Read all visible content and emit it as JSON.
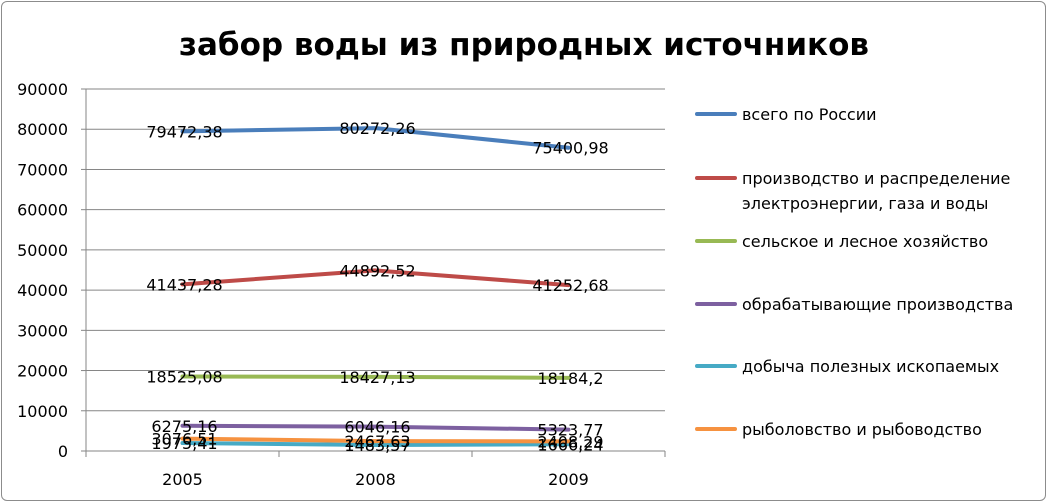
{
  "chart_data": {
    "type": "line",
    "title": "забор воды из природных источников",
    "categories": [
      "2005",
      "2008",
      "2009"
    ],
    "ylim": [
      0,
      90000
    ],
    "yticks": [
      0,
      10000,
      20000,
      30000,
      40000,
      50000,
      60000,
      70000,
      80000,
      90000
    ],
    "grid": true,
    "legend_position": "right",
    "series": [
      {
        "name": "всего по России",
        "legend_lines": [
          "всего по России"
        ],
        "color": "#4a7ebb",
        "values": [
          79472.38,
          80272.26,
          75400.98
        ],
        "labels": [
          "79472,38",
          "80272,26",
          "75400,98"
        ]
      },
      {
        "name": "производство и распределение электроэнергии, газа и воды",
        "legend_lines": [
          "производство и распределение",
          "электроэнергии, газа и воды"
        ],
        "color": "#be4b48",
        "values": [
          41437.28,
          44892.52,
          41252.68
        ],
        "labels": [
          "41437,28",
          "44892,52",
          "41252,68"
        ]
      },
      {
        "name": "сельское и лесное хозяйство",
        "legend_lines": [
          "сельское и лесное хозяйство"
        ],
        "color": "#98b954",
        "values": [
          18525.08,
          18427.13,
          18184.2
        ],
        "labels": [
          "18525,08",
          "18427,13",
          "18184,2"
        ]
      },
      {
        "name": "обрабатывающие производства",
        "legend_lines": [
          "обрабатывающие производства"
        ],
        "color": "#7d60a0",
        "values": [
          6275.16,
          6046.16,
          5323.77
        ],
        "labels": [
          "6275,16",
          "6046,16",
          "5323,77"
        ]
      },
      {
        "name": "добыча полезных ископаемых",
        "legend_lines": [
          "добыча полезных ископаемых"
        ],
        "color": "#46aac5",
        "values": [
          1975.41,
          1483.57,
          1666.24
        ],
        "labels": [
          "1975,41",
          "1483,57",
          "1666,24"
        ]
      },
      {
        "name": "рыболовство и рыбоводство",
        "legend_lines": [
          "рыболовство и рыбоводство"
        ],
        "color": "#f69240",
        "values": [
          3076.51,
          2467.63,
          2408.29
        ],
        "labels": [
          "3076,51",
          "2467,63",
          "2408,29"
        ]
      }
    ]
  }
}
